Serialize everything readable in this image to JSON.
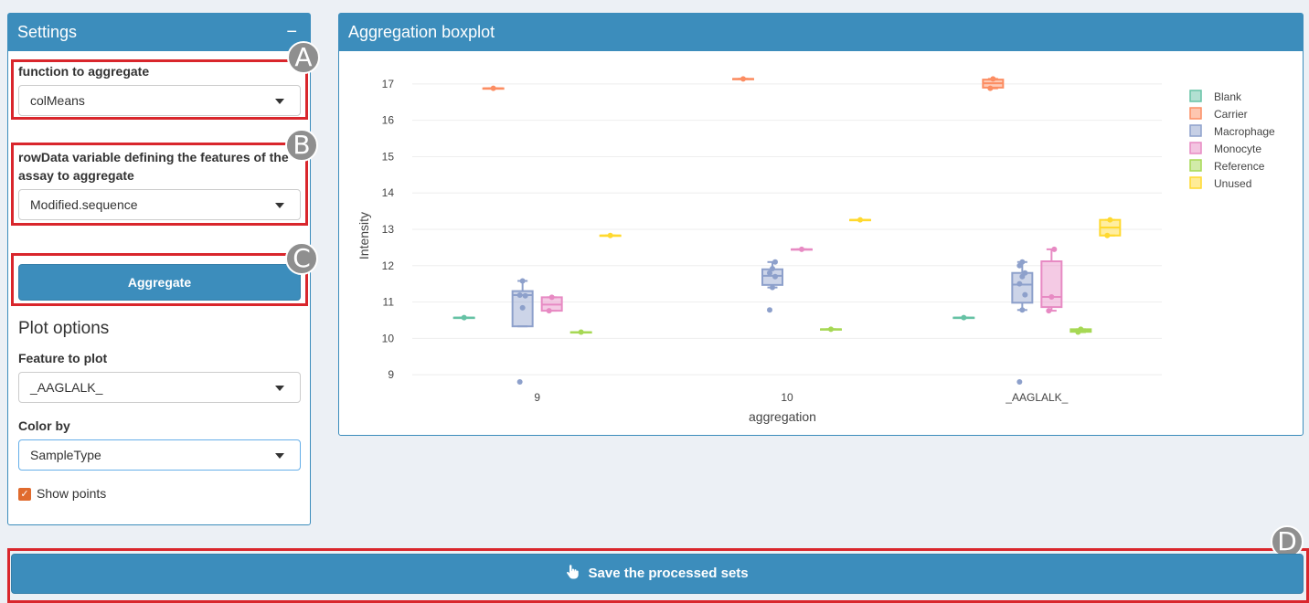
{
  "settings": {
    "title": "Settings",
    "collapse_symbol": "−",
    "aggregate_function": {
      "label": "function to aggregate",
      "value": "colMeans"
    },
    "rowdata_variable": {
      "label": "rowData variable defining the features of the assay to aggregate",
      "value": "Modified.sequence"
    },
    "aggregate_button": "Aggregate",
    "plot_options": {
      "heading": "Plot options",
      "feature": {
        "label": "Feature to plot",
        "value": "_AAGLALK_"
      },
      "color_by": {
        "label": "Color by",
        "value": "SampleType"
      },
      "show_points": {
        "label": "Show points",
        "checked": true,
        "check_symbol": "✓"
      }
    }
  },
  "plot_panel": {
    "title": "Aggregation boxplot"
  },
  "markers": {
    "a": "A",
    "b": "B",
    "c": "C",
    "d": "D"
  },
  "save_button": {
    "label": "Save the processed sets",
    "icon": "pointing-hand-icon"
  },
  "colors": {
    "accent": "#3c8dbc",
    "highlight": "#d9262c",
    "checkbox": "#e06b2e"
  },
  "chart_data": {
    "type": "box",
    "xlabel": "aggregation",
    "ylabel": "Intensity",
    "categories": [
      "9",
      "10",
      "_AAGLALK_"
    ],
    "yticks": [
      9,
      10,
      11,
      12,
      13,
      14,
      15,
      16,
      17
    ],
    "ylim": [
      8.6,
      17.4
    ],
    "legend_position": "top-right",
    "series": [
      {
        "name": "Blank",
        "color": "#66c2a5",
        "boxes": [
          {
            "category": "9",
            "q1": 10.57,
            "median": 10.57,
            "q3": 10.57,
            "min": 10.57,
            "max": 10.57,
            "points": [
              10.57
            ]
          },
          {
            "category": "_AAGLALK_",
            "q1": 10.57,
            "median": 10.57,
            "q3": 10.57,
            "min": 10.57,
            "max": 10.57,
            "points": [
              10.57
            ]
          }
        ]
      },
      {
        "name": "Carrier",
        "color": "#fc8d62",
        "boxes": [
          {
            "category": "9",
            "q1": 16.88,
            "median": 16.88,
            "q3": 16.88,
            "min": 16.88,
            "max": 16.88,
            "points": [
              16.88
            ]
          },
          {
            "category": "10",
            "q1": 17.14,
            "median": 17.14,
            "q3": 17.14,
            "min": 17.14,
            "max": 17.14,
            "points": [
              17.14
            ]
          },
          {
            "category": "_AAGLALK_",
            "q1": 16.9,
            "median": 17.02,
            "q3": 17.12,
            "min": 16.88,
            "max": 17.14,
            "points": [
              16.88,
              17.14
            ]
          }
        ]
      },
      {
        "name": "Macrophage",
        "color": "#8da0cb",
        "boxes": [
          {
            "category": "9",
            "q1": 10.33,
            "median": 11.19,
            "q3": 11.3,
            "min": 10.33,
            "max": 11.58,
            "points": [
              8.8,
              10.84,
              11.17,
              11.19,
              11.58
            ]
          },
          {
            "category": "10",
            "q1": 11.47,
            "median": 11.72,
            "q3": 11.9,
            "min": 11.4,
            "max": 12.1,
            "points": [
              10.78,
              11.4,
              11.7,
              11.8,
              11.92,
              12.1
            ]
          },
          {
            "category": "_AAGLALK_",
            "q1": 10.98,
            "median": 11.48,
            "q3": 11.8,
            "min": 10.78,
            "max": 12.1,
            "points": [
              8.8,
              10.78,
              11.2,
              11.5,
              11.7,
              11.8,
              12.0,
              12.1
            ]
          }
        ]
      },
      {
        "name": "Monocyte",
        "color": "#e78ac3",
        "boxes": [
          {
            "category": "9",
            "q1": 10.76,
            "median": 10.93,
            "q3": 11.13,
            "min": 10.76,
            "max": 11.13,
            "points": [
              10.76,
              11.13
            ]
          },
          {
            "category": "10",
            "q1": 12.45,
            "median": 12.45,
            "q3": 12.45,
            "min": 12.45,
            "max": 12.45,
            "points": [
              12.45
            ]
          },
          {
            "category": "_AAGLALK_",
            "q1": 10.86,
            "median": 11.14,
            "q3": 12.12,
            "min": 10.76,
            "max": 12.45,
            "points": [
              10.76,
              11.14,
              12.45
            ]
          }
        ]
      },
      {
        "name": "Reference",
        "color": "#a6d854",
        "boxes": [
          {
            "category": "9",
            "q1": 10.17,
            "median": 10.17,
            "q3": 10.17,
            "min": 10.17,
            "max": 10.17,
            "points": [
              10.17
            ]
          },
          {
            "category": "10",
            "q1": 10.25,
            "median": 10.25,
            "q3": 10.25,
            "min": 10.25,
            "max": 10.25,
            "points": [
              10.25
            ]
          },
          {
            "category": "_AAGLALK_",
            "q1": 10.18,
            "median": 10.21,
            "q3": 10.25,
            "min": 10.17,
            "max": 10.25,
            "points": [
              10.17,
              10.25
            ]
          }
        ]
      },
      {
        "name": "Unused",
        "color": "#ffd92f",
        "boxes": [
          {
            "category": "9",
            "q1": 12.83,
            "median": 12.83,
            "q3": 12.83,
            "min": 12.83,
            "max": 12.83,
            "points": [
              12.83
            ]
          },
          {
            "category": "10",
            "q1": 13.26,
            "median": 13.26,
            "q3": 13.26,
            "min": 13.26,
            "max": 13.26,
            "points": [
              13.26
            ]
          },
          {
            "category": "_AAGLALK_",
            "q1": 12.83,
            "median": 13.05,
            "q3": 13.26,
            "min": 12.83,
            "max": 13.26,
            "points": [
              12.83,
              13.26
            ]
          }
        ]
      }
    ]
  }
}
